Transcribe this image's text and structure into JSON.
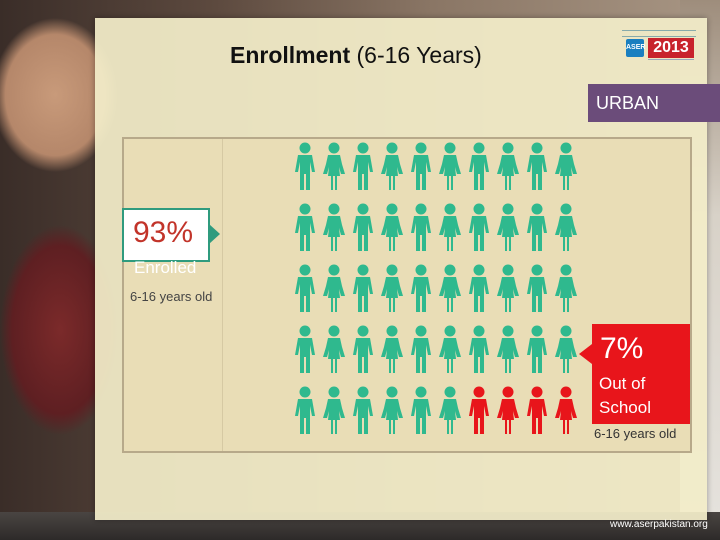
{
  "title": {
    "bold": "Enrollment",
    "rest": " (6-16 Years)"
  },
  "logo": {
    "year": "2013",
    "mark": "ASER"
  },
  "area_label": "URBAN",
  "enrolled": {
    "percent": "93%",
    "label": "Enrolled",
    "age": "6-16 years old"
  },
  "out_of_school": {
    "percent": "7%",
    "label_line1": "Out of",
    "label_line2": "School",
    "age": "6-16 years old"
  },
  "pictogram": {
    "rows": 5,
    "cols": 10,
    "total": 50,
    "out_of_school_count": 4,
    "enrolled_color": "#2fb98e",
    "out_color": "#e8151b"
  },
  "footer_url": "www.aserpakistan.org"
}
